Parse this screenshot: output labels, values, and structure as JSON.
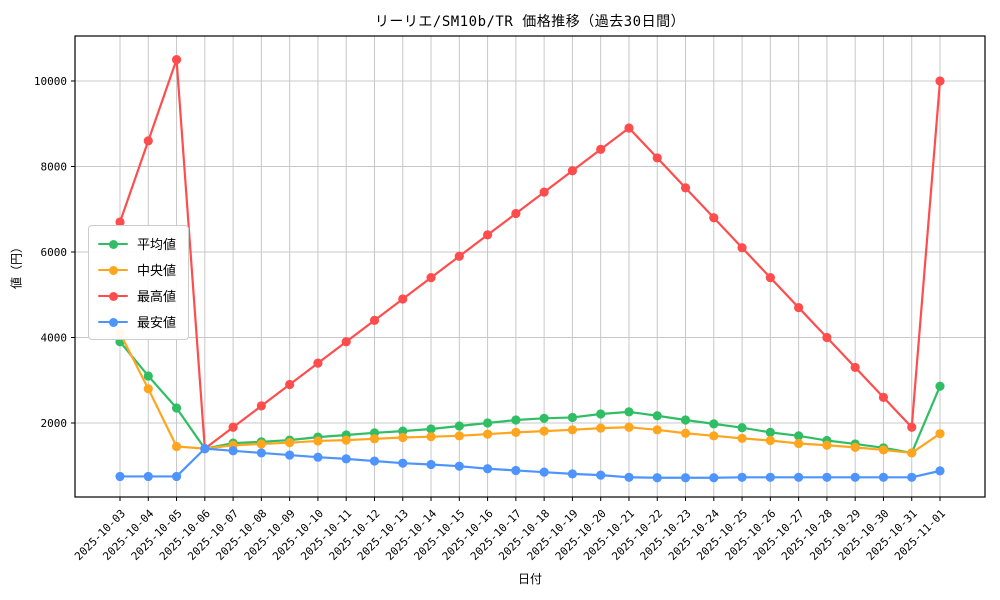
{
  "chart_data": {
    "type": "line",
    "title": "リーリエ/SM10b/TR 価格推移（過去30日間）",
    "xlabel": "日付",
    "ylabel": "値（円）",
    "x": [
      "2025-10-03",
      "2025-10-04",
      "2025-10-05",
      "2025-10-06",
      "2025-10-07",
      "2025-10-08",
      "2025-10-09",
      "2025-10-10",
      "2025-10-11",
      "2025-10-12",
      "2025-10-13",
      "2025-10-14",
      "2025-10-15",
      "2025-10-16",
      "2025-10-17",
      "2025-10-18",
      "2025-10-19",
      "2025-10-20",
      "2025-10-21",
      "2025-10-22",
      "2025-10-23",
      "2025-10-24",
      "2025-10-25",
      "2025-10-26",
      "2025-10-27",
      "2025-10-28",
      "2025-10-29",
      "2025-10-30",
      "2025-10-31",
      "2025-11-01"
    ],
    "series": [
      {
        "key": "avg",
        "name": "平均値",
        "color": "#2fbe64",
        "values": [
          3900,
          3100,
          2350,
          1400,
          1530,
          1560,
          1600,
          1670,
          1720,
          1770,
          1810,
          1860,
          1930,
          2000,
          2070,
          2110,
          2130,
          2210,
          2260,
          2170,
          2070,
          1980,
          1890,
          1780,
          1700,
          1590,
          1510,
          1420,
          1300,
          2860
        ]
      },
      {
        "key": "median",
        "name": "中央値",
        "color": "#ffa51e",
        "values": [
          4100,
          2800,
          1450,
          1400,
          1480,
          1510,
          1540,
          1580,
          1600,
          1630,
          1660,
          1680,
          1700,
          1740,
          1780,
          1810,
          1840,
          1880,
          1900,
          1840,
          1760,
          1700,
          1640,
          1590,
          1520,
          1480,
          1430,
          1370,
          1300,
          1750
        ]
      },
      {
        "key": "max",
        "name": "最高値",
        "color": "#ff4d4d",
        "values": [
          6700,
          8600,
          10500,
          1400,
          1900,
          2400,
          2900,
          3400,
          3900,
          4400,
          4900,
          5400,
          5900,
          6400,
          6900,
          7400,
          7900,
          8400,
          8900,
          8200,
          7500,
          6800,
          6100,
          5400,
          4700,
          4000,
          3300,
          2600,
          1900,
          10000
        ]
      },
      {
        "key": "min",
        "name": "最安値",
        "color": "#4d94ff",
        "values": [
          750,
          750,
          750,
          1400,
          1350,
          1300,
          1250,
          1200,
          1160,
          1110,
          1060,
          1030,
          990,
          930,
          890,
          850,
          810,
          780,
          730,
          720,
          720,
          720,
          730,
          730,
          730,
          730,
          730,
          730,
          730,
          880
        ]
      }
    ],
    "yticks": [
      2000,
      4000,
      6000,
      8000,
      10000
    ],
    "ylim": [
      269,
      11052
    ],
    "grid": true,
    "legend_position": "center-left",
    "colors": {
      "grid": "#c8c8c8",
      "axis": "#000000",
      "background": "#ffffff",
      "tick_text": "#000000"
    }
  }
}
